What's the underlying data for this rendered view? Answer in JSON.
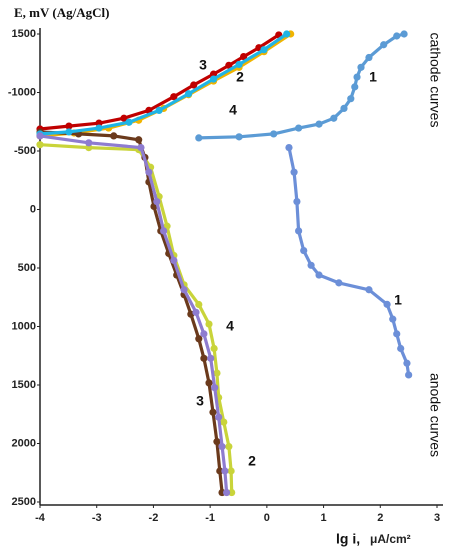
{
  "chart_data": {
    "type": "line",
    "title": "E, mV (Ag/AgCl)",
    "x_label": "lg i,",
    "x_unit": "μA/cm²",
    "annotations": [
      "cathode curves",
      "anode curves",
      "1",
      "1",
      "2",
      "2",
      "3",
      "3",
      "4",
      "4"
    ],
    "xlim": [
      -4,
      3
    ],
    "xticks": [
      -4,
      -3,
      -2,
      -1,
      0,
      1,
      2,
      3
    ],
    "ylim": [
      -1500,
      2500
    ],
    "y_inverted": true,
    "yticks": [
      {
        "value": -1500,
        "label": "1500"
      },
      -1000,
      -500,
      0,
      500,
      1000,
      1500,
      2000,
      2500
    ],
    "grid": false,
    "series": [
      {
        "name": "1",
        "color": "#5b9bd5",
        "x": [
          -1.2,
          -0.49,
          0.12,
          0.56,
          0.92,
          1.18,
          1.36,
          1.48,
          1.55,
          1.59,
          1.66,
          1.8,
          2.06,
          2.29,
          2.42
        ],
        "values": [
          -612,
          -621,
          -646,
          -696,
          -730,
          -780,
          -864,
          -947,
          -1048,
          -1132,
          -1215,
          -1299,
          -1408,
          -1483,
          -1500
        ]
      },
      {
        "name": "1",
        "color": "#6c8fd8",
        "x": [
          0.39,
          0.48,
          0.53,
          0.56,
          0.65,
          0.78,
          0.92,
          1.27,
          1.8,
          2.12,
          2.22,
          2.29,
          2.36,
          2.47,
          2.5
        ],
        "values": [
          -529,
          -319,
          -68,
          183,
          351,
          477,
          560,
          627,
          686,
          811,
          937,
          1063,
          1188,
          1314,
          1414
        ]
      },
      {
        "name": "2",
        "color": "#f0b400",
        "x": [
          0.42,
          -0.05,
          -0.49,
          -0.94,
          -1.38,
          -1.82,
          -2.26,
          -2.79,
          -3.4,
          -4
        ],
        "values": [
          -1500,
          -1349,
          -1215,
          -1098,
          -981,
          -864,
          -763,
          -696,
          -654,
          -629
        ]
      },
      {
        "name": "2",
        "color": "#c9d43a",
        "x": [
          -4,
          -3.14,
          -2.26,
          -2.05,
          -1.9,
          -1.76,
          -1.64,
          -1.46,
          -1.2,
          -1.02,
          -0.93,
          -0.88,
          -0.85,
          -0.76,
          -0.67,
          -0.63,
          -0.62
        ],
        "values": [
          -554,
          -529,
          -512,
          -361,
          -110,
          142,
          393,
          644,
          812,
          979,
          1188,
          1398,
          1607,
          1817,
          2026,
          2235,
          2419
        ]
      },
      {
        "name": "3",
        "color": "#c00000",
        "x": [
          0.21,
          -0.14,
          -0.41,
          -0.67,
          -0.94,
          -1.29,
          -1.64,
          -2.08,
          -2.52,
          -2.96,
          -3.49,
          -4
        ],
        "values": [
          -1492,
          -1383,
          -1307,
          -1232,
          -1157,
          -1064,
          -964,
          -847,
          -780,
          -738,
          -713,
          -688
        ]
      },
      {
        "name": "3",
        "color": "#6b3a1c",
        "x": [
          -4,
          -3.32,
          -2.7,
          -2.26,
          -2.15,
          -2.08,
          -1.99,
          -1.87,
          -1.73,
          -1.59,
          -1.46,
          -1.34,
          -1.2,
          -1.11,
          -1.02,
          -0.95,
          -0.88,
          -0.83,
          -0.79
        ],
        "values": [
          -662,
          -646,
          -629,
          -596,
          -445,
          -235,
          -26,
          183,
          376,
          560,
          728,
          895,
          1105,
          1272,
          1482,
          1733,
          1984,
          2235,
          2419
        ]
      },
      {
        "name": "4",
        "color": "#1fb4e6",
        "x": [
          0.35,
          -0.05,
          -0.49,
          -0.94,
          -1.38,
          -1.9,
          -2.43,
          -2.96,
          -3.49,
          -4
        ],
        "values": [
          -1500,
          -1366,
          -1240,
          -1115,
          -989,
          -847,
          -746,
          -696,
          -663,
          -646
        ]
      },
      {
        "name": "4",
        "color": "#8e7cd0",
        "x": [
          -4,
          -3.14,
          -2.22,
          -2.08,
          -1.94,
          -1.82,
          -1.64,
          -1.46,
          -1.25,
          -1.11,
          -0.99,
          -0.92,
          -0.85,
          -0.79,
          -0.74,
          -0.71
        ],
        "values": [
          -629,
          -570,
          -529,
          -319,
          -68,
          183,
          435,
          686,
          879,
          1063,
          1272,
          1523,
          1775,
          2026,
          2235,
          2419
        ]
      }
    ]
  }
}
